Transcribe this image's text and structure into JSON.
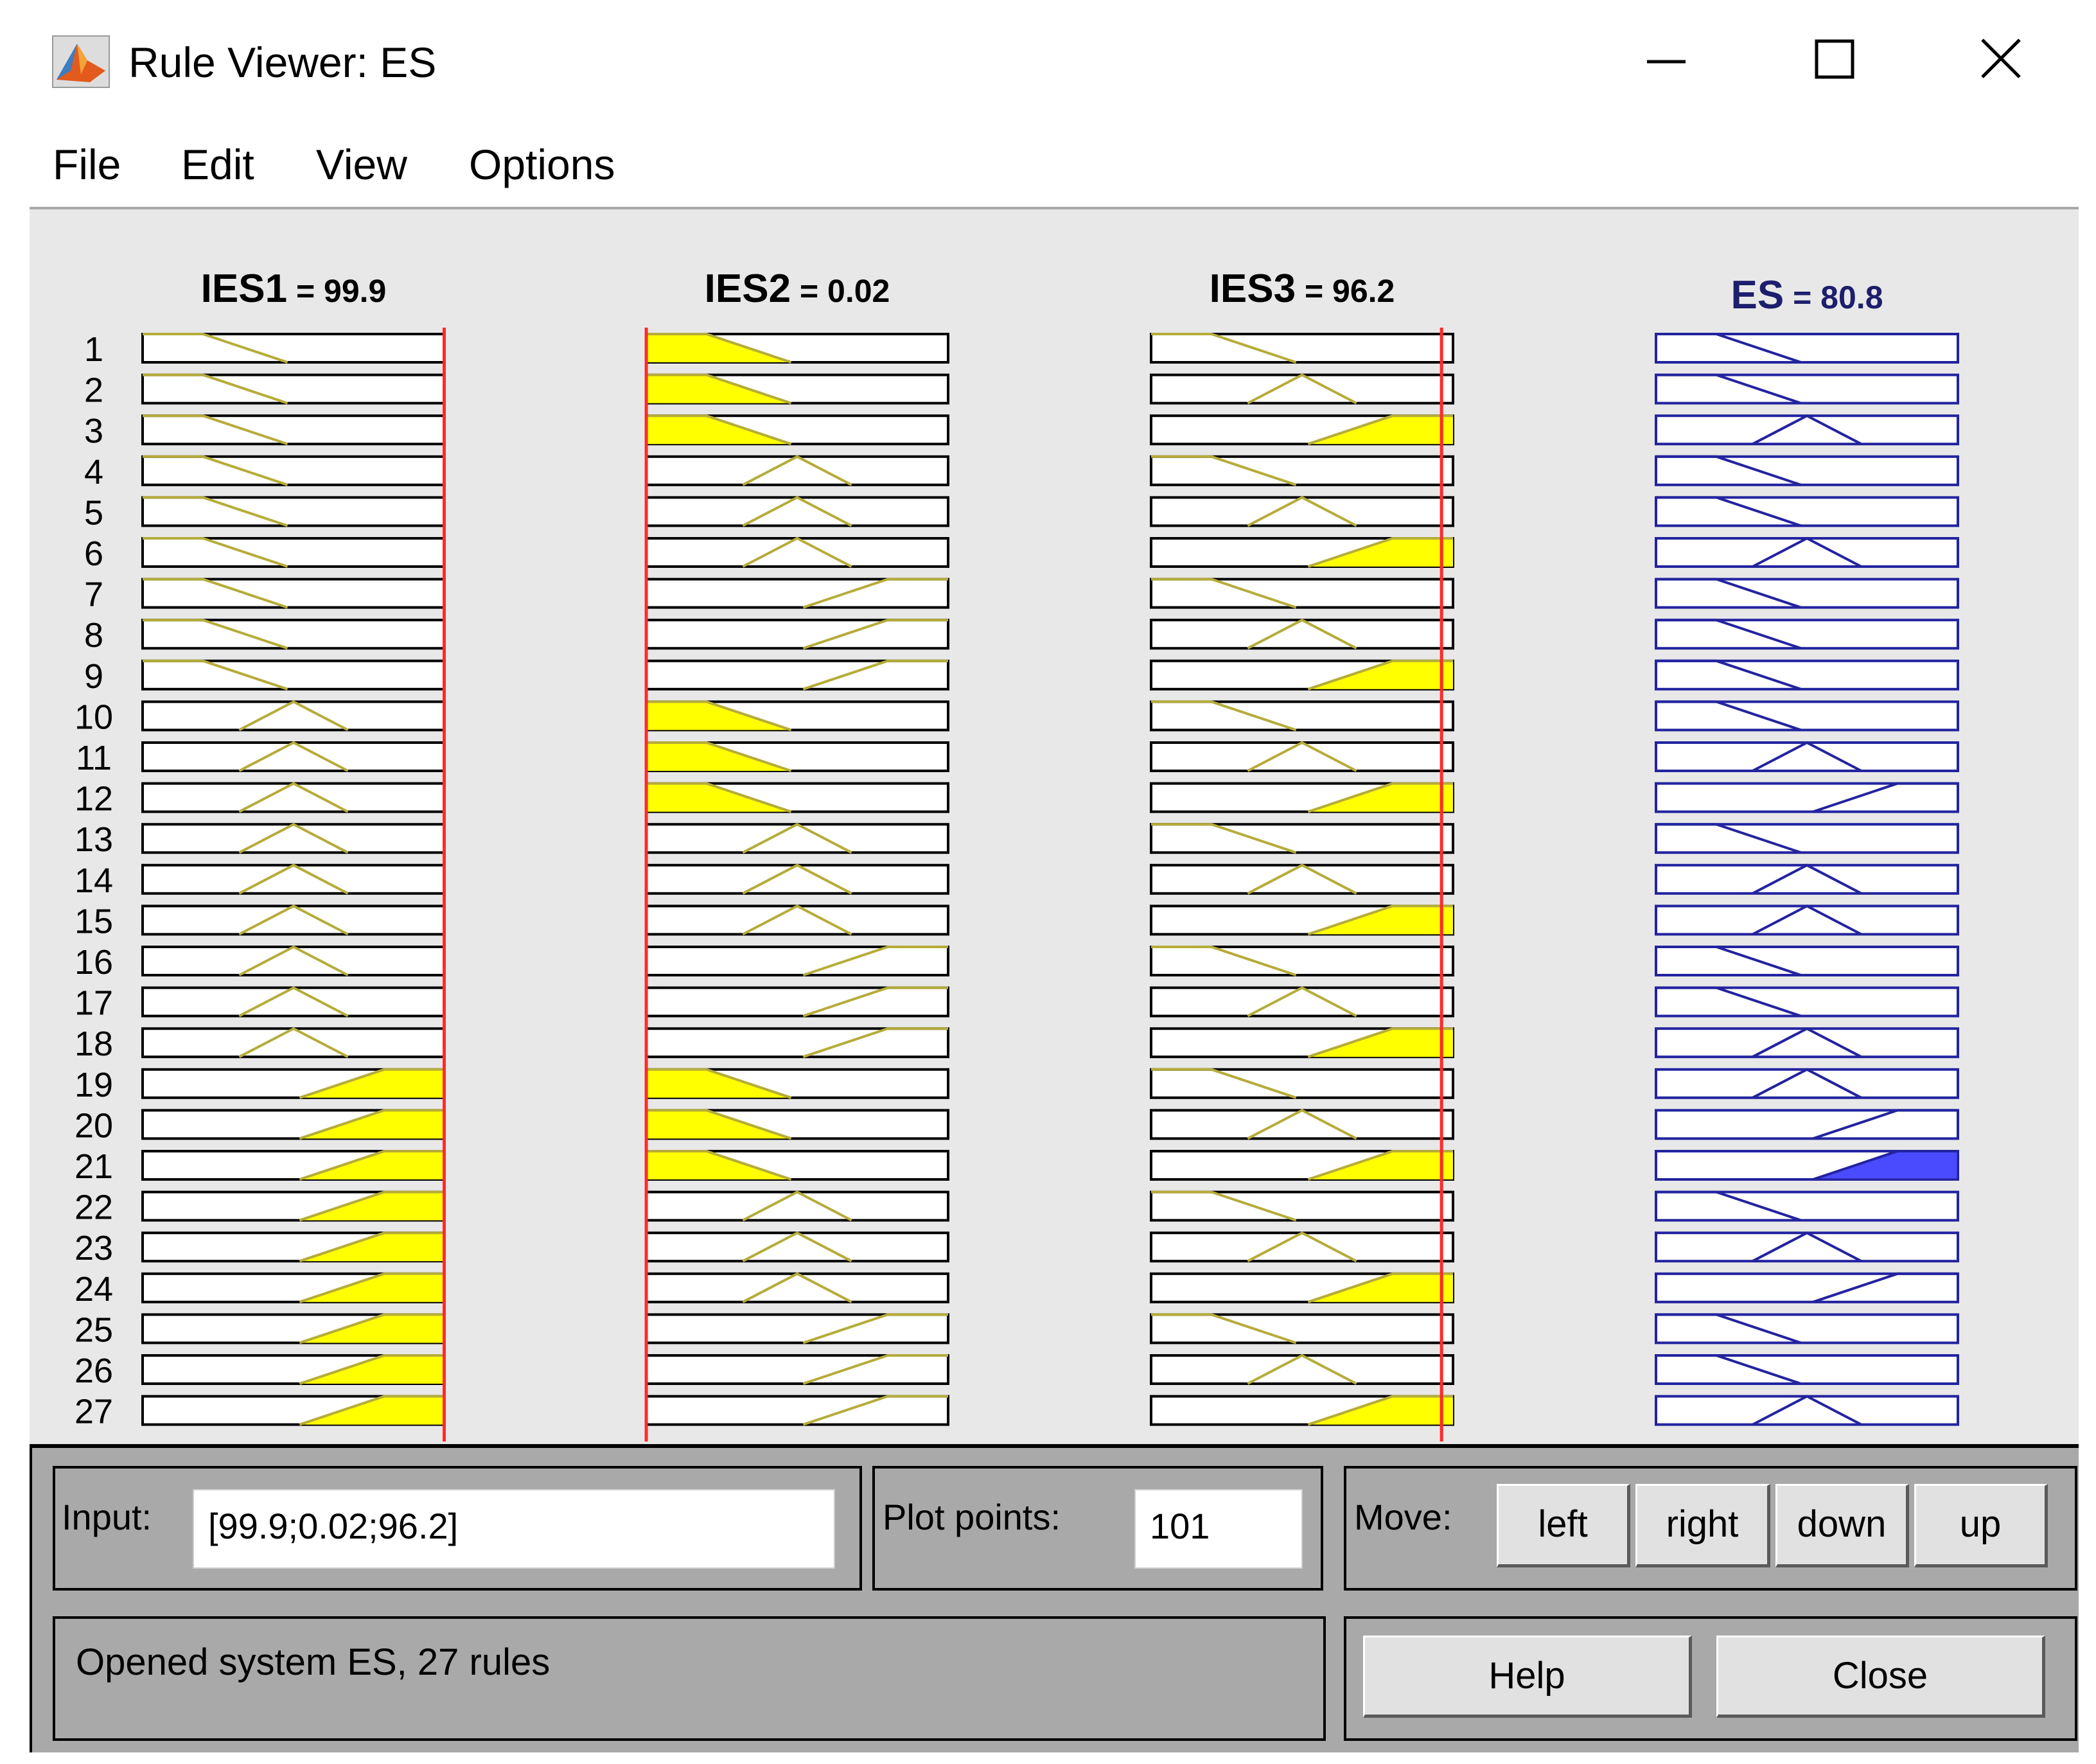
{
  "window": {
    "title": "Rule Viewer: ES",
    "controls": [
      "minimize-icon",
      "maximize-icon",
      "close-icon"
    ]
  },
  "menu": {
    "items": [
      "File",
      "Edit",
      "View",
      "Options"
    ]
  },
  "columns": [
    {
      "name": "IES1",
      "value": "99.9",
      "type": "input",
      "color": "#b5ac3a",
      "fill": "#ffff00",
      "range": [
        0,
        100
      ],
      "current": 99.9
    },
    {
      "name": "IES2",
      "value": "0.02",
      "type": "input",
      "color": "#b5ac3a",
      "fill": "#ffff00",
      "range": [
        0,
        100
      ],
      "current": 0.02
    },
    {
      "name": "IES3",
      "value": "96.2",
      "type": "input",
      "color": "#b5ac3a",
      "fill": "#ffff00",
      "range": [
        0,
        100
      ],
      "current": 96.2
    },
    {
      "name": "ES",
      "value": "80.8",
      "type": "output",
      "color": "#2323a0",
      "fill": "#4a4aff",
      "range": [
        0,
        100
      ]
    }
  ],
  "rules": [
    {
      "n": "1",
      "mf": [
        "L",
        "L",
        "L",
        "L"
      ]
    },
    {
      "n": "2",
      "mf": [
        "L",
        "L",
        "M",
        "L"
      ]
    },
    {
      "n": "3",
      "mf": [
        "L",
        "L",
        "H",
        "M"
      ]
    },
    {
      "n": "4",
      "mf": [
        "L",
        "M",
        "L",
        "L"
      ]
    },
    {
      "n": "5",
      "mf": [
        "L",
        "M",
        "M",
        "L"
      ]
    },
    {
      "n": "6",
      "mf": [
        "L",
        "M",
        "H",
        "M"
      ]
    },
    {
      "n": "7",
      "mf": [
        "L",
        "H",
        "L",
        "L"
      ]
    },
    {
      "n": "8",
      "mf": [
        "L",
        "H",
        "M",
        "L"
      ]
    },
    {
      "n": "9",
      "mf": [
        "L",
        "H",
        "H",
        "L"
      ]
    },
    {
      "n": "10",
      "mf": [
        "M",
        "L",
        "L",
        "L"
      ]
    },
    {
      "n": "11",
      "mf": [
        "M",
        "L",
        "M",
        "M"
      ]
    },
    {
      "n": "12",
      "mf": [
        "M",
        "L",
        "H",
        "H"
      ]
    },
    {
      "n": "13",
      "mf": [
        "M",
        "M",
        "L",
        "L"
      ]
    },
    {
      "n": "14",
      "mf": [
        "M",
        "M",
        "M",
        "M"
      ]
    },
    {
      "n": "15",
      "mf": [
        "M",
        "M",
        "H",
        "M"
      ]
    },
    {
      "n": "16",
      "mf": [
        "M",
        "H",
        "L",
        "L"
      ]
    },
    {
      "n": "17",
      "mf": [
        "M",
        "H",
        "M",
        "L"
      ]
    },
    {
      "n": "18",
      "mf": [
        "M",
        "H",
        "H",
        "M"
      ]
    },
    {
      "n": "19",
      "mf": [
        "H",
        "L",
        "L",
        "M"
      ]
    },
    {
      "n": "20",
      "mf": [
        "H",
        "L",
        "M",
        "H"
      ]
    },
    {
      "n": "21",
      "mf": [
        "H",
        "L",
        "H",
        "H"
      ]
    },
    {
      "n": "22",
      "mf": [
        "H",
        "M",
        "L",
        "L"
      ]
    },
    {
      "n": "23",
      "mf": [
        "H",
        "M",
        "M",
        "M"
      ]
    },
    {
      "n": "24",
      "mf": [
        "H",
        "M",
        "H",
        "H"
      ]
    },
    {
      "n": "25",
      "mf": [
        "H",
        "H",
        "L",
        "L"
      ]
    },
    {
      "n": "26",
      "mf": [
        "H",
        "H",
        "M",
        "L"
      ]
    },
    {
      "n": "27",
      "mf": [
        "H",
        "H",
        "H",
        "M"
      ]
    }
  ],
  "membership_functions": {
    "L": [
      [
        0,
        1
      ],
      [
        20,
        1
      ],
      [
        48,
        0
      ]
    ],
    "M": [
      [
        32,
        0
      ],
      [
        50,
        1
      ],
      [
        68,
        0
      ]
    ],
    "H": [
      [
        52,
        0
      ],
      [
        80,
        1
      ],
      [
        100,
        1
      ]
    ]
  },
  "controls": {
    "input_label": "Input:",
    "input_value": "[99.9;0.02;96.2]",
    "plot_points_label": "Plot points:",
    "plot_points_value": "101",
    "move_label": "Move:",
    "left": "left",
    "right": "right",
    "down": "down",
    "up": "up",
    "help": "Help",
    "close": "Close",
    "status": "Opened system  ES, 27 rules"
  }
}
